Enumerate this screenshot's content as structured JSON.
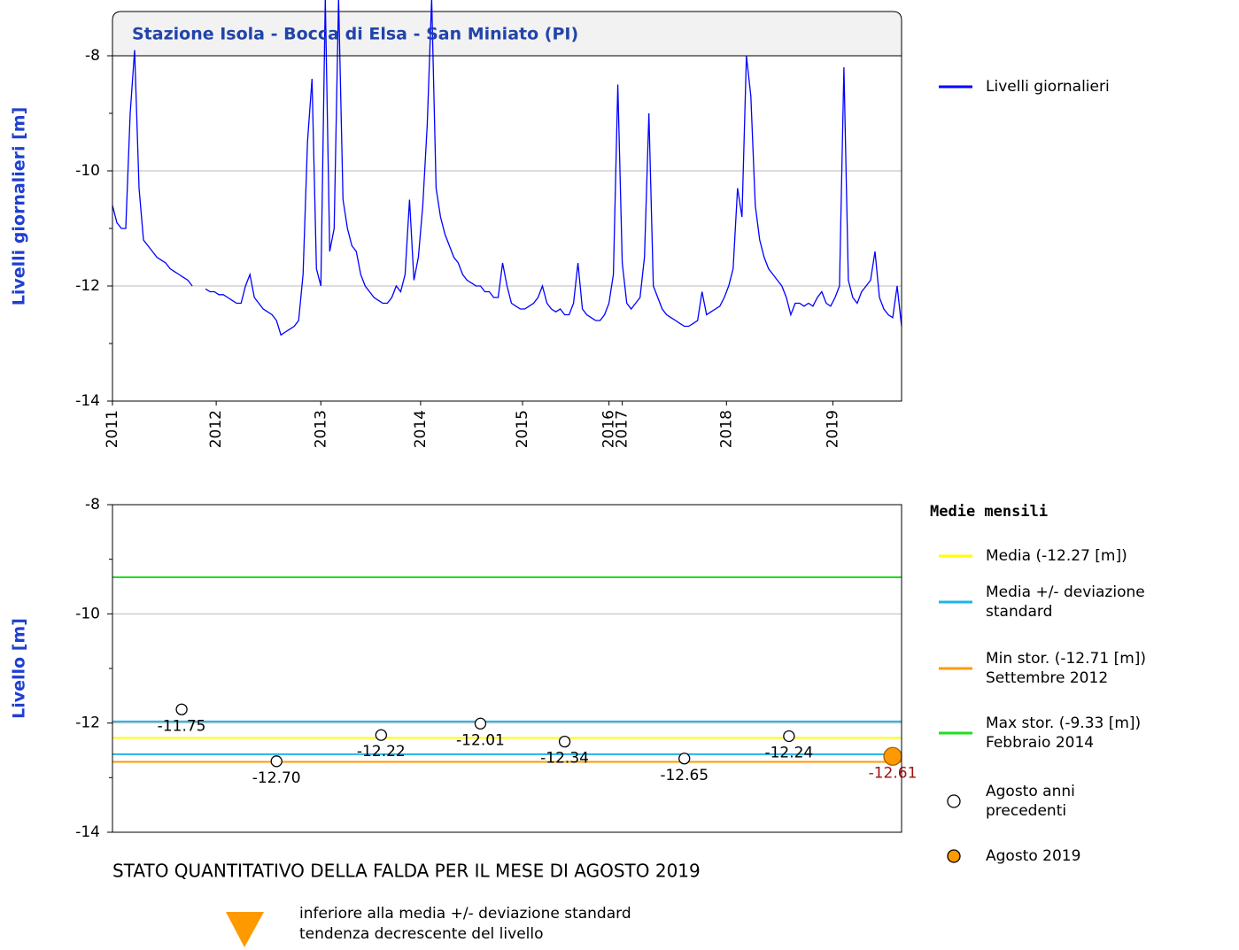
{
  "chart_data": [
    {
      "type": "line",
      "title": "Stazione Isola - Bocca di Elsa - San Miniato (PI)",
      "ylabel": "Livelli giornalieri [m]",
      "xlim": [
        0,
        178
      ],
      "xticks": [
        {
          "value": 0,
          "label": "2011"
        },
        {
          "value": 23.4,
          "label": "2012"
        },
        {
          "value": 47,
          "label": "2013"
        },
        {
          "value": 69.5,
          "label": "2014"
        },
        {
          "value": 92.5,
          "label": "2015"
        },
        {
          "value": 112,
          "label": "2016"
        },
        {
          "value": 115,
          "label": "2017"
        },
        {
          "value": 138.5,
          "label": "2018"
        },
        {
          "value": 162.5,
          "label": "2019"
        }
      ],
      "ylim": [
        -14,
        -8
      ],
      "yticks": [
        -14,
        -12,
        -10,
        -8
      ],
      "yminor": [
        -13,
        -11,
        -9
      ],
      "grid": true,
      "series": [
        {
          "name": "Livelli giornalieri",
          "color": "#0000ff",
          "values": [
            -10.6,
            -10.9,
            -11.0,
            -11.0,
            -9.0,
            -7.9,
            -10.3,
            -11.2,
            -11.3,
            -11.4,
            -11.5,
            -11.55,
            -11.6,
            -11.7,
            -11.75,
            -11.8,
            -11.85,
            -11.9,
            -12.0,
            null,
            null,
            -12.05,
            -12.1,
            -12.1,
            -12.15,
            -12.15,
            -12.2,
            -12.25,
            -12.3,
            -12.3,
            -12.0,
            -11.8,
            -12.2,
            -12.3,
            -12.4,
            -12.45,
            -12.5,
            -12.6,
            -12.85,
            -12.8,
            -12.75,
            -12.7,
            -12.6,
            -11.8,
            -9.5,
            -8.4,
            -11.7,
            -12.0,
            -7.0,
            -11.4,
            -11.0,
            -7.0,
            -10.5,
            -11.0,
            -11.3,
            -11.4,
            -11.8,
            -12.0,
            -12.1,
            -12.2,
            -12.25,
            -12.3,
            -12.3,
            -12.2,
            -12.0,
            -12.1,
            -11.8,
            -10.5,
            -11.9,
            -11.5,
            -10.6,
            -9.2,
            -7.0,
            -10.3,
            -10.8,
            -11.1,
            -11.3,
            -11.5,
            -11.6,
            -11.8,
            -11.9,
            -11.95,
            -12.0,
            -12.0,
            -12.1,
            -12.1,
            -12.2,
            -12.2,
            -11.6,
            -12.0,
            -12.3,
            -12.35,
            -12.4,
            -12.4,
            -12.35,
            -12.3,
            -12.2,
            -12.0,
            -12.3,
            -12.4,
            -12.45,
            -12.4,
            -12.5,
            -12.5,
            -12.3,
            -11.6,
            -12.4,
            -12.5,
            -12.55,
            -12.6,
            -12.6,
            -12.5,
            -12.3,
            -11.8,
            -8.5,
            -11.6,
            -12.3,
            -12.4,
            -12.3,
            -12.2,
            -11.5,
            -9.0,
            -12.0,
            -12.2,
            -12.4,
            -12.5,
            -12.55,
            -12.6,
            -12.65,
            -12.7,
            -12.7,
            -12.65,
            -12.6,
            -12.1,
            -12.5,
            -12.45,
            -12.4,
            -12.35,
            -12.2,
            -12.0,
            -11.7,
            -10.3,
            -10.8,
            -8.0,
            -8.7,
            -10.6,
            -11.2,
            -11.5,
            -11.7,
            -11.8,
            -11.9,
            -12.0,
            -12.2,
            -12.5,
            -12.3,
            -12.3,
            -12.35,
            -12.3,
            -12.35,
            -12.2,
            -12.1,
            -12.3,
            -12.35,
            -12.2,
            -12.0,
            -8.2,
            -11.9,
            -12.2,
            -12.3,
            -12.1,
            -12.0,
            -11.9,
            -11.4,
            -12.2,
            -12.4,
            -12.5,
            -12.55,
            -12.0,
            -12.7
          ]
        }
      ]
    },
    {
      "type": "scatter",
      "ylabel": "Livello [m]",
      "legend_title": "Medie mensili",
      "xlim": [
        0,
        178
      ],
      "ylim": [
        -14,
        -8
      ],
      "yticks": [
        -14,
        -12,
        -10,
        -8
      ],
      "yminor": [
        -13,
        -11,
        -9
      ],
      "grid": true,
      "reference_lines": [
        {
          "name": "Media (-12.27 [m])",
          "color": "#ffff00",
          "values": [
            -12.27
          ]
        },
        {
          "name": [
            "Media +/- deviazione",
            "standard"
          ],
          "color": "#22b4e8",
          "values": [
            -11.97,
            -12.57
          ]
        },
        {
          "name": [
            "Min stor. (-12.71 [m])",
            "Settembre 2012"
          ],
          "color": "#ff9900",
          "values": [
            -12.71
          ]
        },
        {
          "name": [
            "Max stor. (-9.33 [m])",
            "Febbraio 2014"
          ],
          "color": "#22dd22",
          "values": [
            -9.33
          ]
        }
      ],
      "series": [
        {
          "name": [
            "Agosto anni",
            "precedenti"
          ],
          "color": "#ffffff",
          "label_color": "#000000",
          "x": [
            15.6,
            37,
            60.6,
            83,
            102,
            129,
            152.6
          ],
          "values": [
            -11.75,
            -12.7,
            -12.22,
            -12.01,
            -12.34,
            -12.65,
            -12.24
          ],
          "value_labels": [
            "-11.75",
            "-12.70",
            "-12.22",
            "-12.01",
            "-12.34",
            "-12.65",
            "-12.24"
          ]
        },
        {
          "name": "Agosto 2019",
          "color": "#ff9900",
          "label_color": "#a01010",
          "x": [
            176
          ],
          "values": [
            -12.61
          ],
          "value_labels": [
            "-12.61"
          ]
        }
      ]
    }
  ],
  "status": {
    "title": "STATO QUANTITATIVO DELLA FALDA PER IL MESE DI AGOSTO 2019",
    "lines": [
      "inferiore alla media +/- deviazione standard",
      "tendenza decrescente del livello"
    ]
  }
}
